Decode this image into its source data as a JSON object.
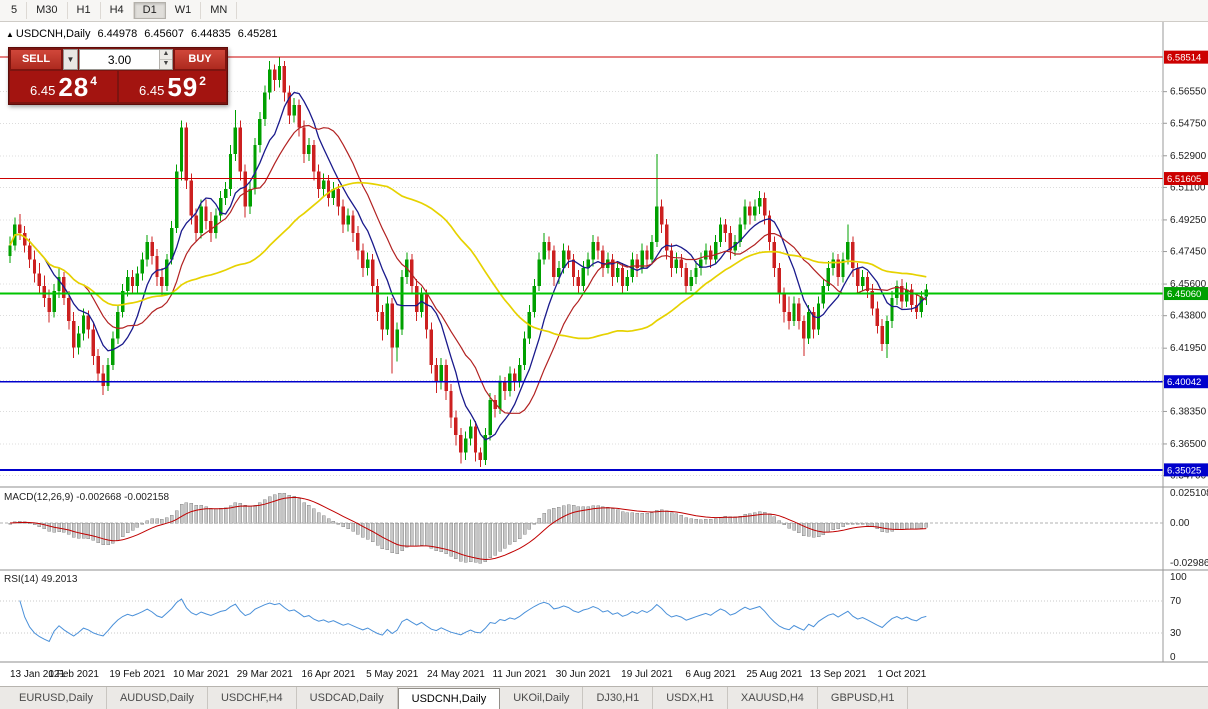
{
  "toolbar": {
    "timeframes": [
      "5",
      "M30",
      "H1",
      "H4",
      "D1",
      "W1",
      "MN"
    ],
    "active": "D1"
  },
  "chart_header": {
    "marker": "▲",
    "symbol": "USDCNH,Daily",
    "ohlc": [
      "6.44978",
      "6.45607",
      "6.44835",
      "6.45281"
    ]
  },
  "order_panel": {
    "sell_label": "SELL",
    "buy_label": "BUY",
    "volume": "3.00",
    "dropdown_icon": "▼",
    "spin_up_icon": "▲",
    "spin_down_icon": "▼",
    "sell_price": {
      "small": "6.45",
      "big": "28",
      "sup": "4"
    },
    "buy_price": {
      "small": "6.45",
      "big": "59",
      "sup": "2"
    }
  },
  "chart_data": {
    "type": "candlestick",
    "title": "USDCNH,Daily",
    "ylim": [
      6.3405,
      6.604
    ],
    "yticks": [
      6.5655,
      6.5475,
      6.529,
      6.511,
      6.4925,
      6.4745,
      6.456,
      6.438,
      6.4195,
      6.401,
      6.3835,
      6.365,
      6.347
    ],
    "up_color": "#00a000",
    "down_color": "#cc2020",
    "overlays": [
      {
        "name": "ma-fast-navy",
        "period": 8,
        "color": "#1a1a8c",
        "width": 1.3
      },
      {
        "name": "ma-mid-red",
        "period": 16,
        "color": "#b22222",
        "width": 1.2
      },
      {
        "name": "ma-slow-yellow",
        "period": 45,
        "color": "#e6d200",
        "width": 1.7
      }
    ],
    "hlines": [
      {
        "value": 6.58514,
        "color": "#cc0000",
        "width": 1,
        "label": "6.58514",
        "badge": "#cc0000"
      },
      {
        "value": 6.51605,
        "color": "#cc0000",
        "width": 1,
        "label": "6.51605",
        "badge": "#cc0000"
      },
      {
        "value": 6.4506,
        "color": "#00c400",
        "width": 2,
        "label": "6.45060",
        "badge": "#00a000"
      },
      {
        "value": 6.40042,
        "color": "#0000cc",
        "width": 1.5,
        "label": "6.40042",
        "badge": "#0000cc"
      },
      {
        "value": 6.35025,
        "color": "#0000cc",
        "width": 2,
        "label": "6.35025",
        "badge": "#0000cc"
      }
    ],
    "x_labels": [
      {
        "i": 0,
        "t": "13 Jan 2021"
      },
      {
        "i": 13,
        "t": "1 Feb 2021"
      },
      {
        "i": 26,
        "t": "19 Feb 2021"
      },
      {
        "i": 39,
        "t": "10 Mar 2021"
      },
      {
        "i": 52,
        "t": "29 Mar 2021"
      },
      {
        "i": 65,
        "t": "16 Apr 2021"
      },
      {
        "i": 78,
        "t": "5 May 2021"
      },
      {
        "i": 91,
        "t": "24 May 2021"
      },
      {
        "i": 104,
        "t": "11 Jun 2021"
      },
      {
        "i": 117,
        "t": "30 Jun 2021"
      },
      {
        "i": 130,
        "t": "19 Jul 2021"
      },
      {
        "i": 143,
        "t": "6 Aug 2021"
      },
      {
        "i": 156,
        "t": "25 Aug 2021"
      },
      {
        "i": 169,
        "t": "13 Sep 2021"
      },
      {
        "i": 182,
        "t": "1 Oct 2021"
      }
    ],
    "candles": [
      [
        6.472,
        6.483,
        6.468,
        6.478
      ],
      [
        6.478,
        6.494,
        6.475,
        6.49
      ],
      [
        6.49,
        6.496,
        6.481,
        6.485
      ],
      [
        6.485,
        6.489,
        6.474,
        6.478
      ],
      [
        6.478,
        6.482,
        6.465,
        6.47
      ],
      [
        6.47,
        6.475,
        6.457,
        6.462
      ],
      [
        6.462,
        6.468,
        6.45,
        6.455
      ],
      [
        6.455,
        6.461,
        6.443,
        6.448
      ],
      [
        6.448,
        6.453,
        6.434,
        6.44
      ],
      [
        6.44,
        6.456,
        6.437,
        6.452
      ],
      [
        6.452,
        6.465,
        6.448,
        6.46
      ],
      [
        6.46,
        6.463,
        6.444,
        6.448
      ],
      [
        6.448,
        6.452,
        6.43,
        6.435
      ],
      [
        6.435,
        6.44,
        6.414,
        6.42
      ],
      [
        6.42,
        6.432,
        6.416,
        6.428
      ],
      [
        6.428,
        6.442,
        6.424,
        6.438
      ],
      [
        6.438,
        6.441,
        6.425,
        6.43
      ],
      [
        6.43,
        6.434,
        6.41,
        6.415
      ],
      [
        6.415,
        6.419,
        6.4,
        6.405
      ],
      [
        6.405,
        6.41,
        6.393,
        6.398
      ],
      [
        6.398,
        6.414,
        6.395,
        6.41
      ],
      [
        6.41,
        6.429,
        6.407,
        6.425
      ],
      [
        6.425,
        6.444,
        6.422,
        6.44
      ],
      [
        6.44,
        6.456,
        6.437,
        6.452
      ],
      [
        6.452,
        6.464,
        6.449,
        6.46
      ],
      [
        6.46,
        6.464,
        6.45,
        6.455
      ],
      [
        6.455,
        6.466,
        6.451,
        6.462
      ],
      [
        6.462,
        6.474,
        6.458,
        6.47
      ],
      [
        6.47,
        6.484,
        6.466,
        6.48
      ],
      [
        6.48,
        6.483,
        6.467,
        6.472
      ],
      [
        6.472,
        6.476,
        6.455,
        6.46
      ],
      [
        6.46,
        6.465,
        6.449,
        6.455
      ],
      [
        6.455,
        6.473,
        6.452,
        6.47
      ],
      [
        6.47,
        6.492,
        6.467,
        6.488
      ],
      [
        6.488,
        6.524,
        6.485,
        6.52
      ],
      [
        6.52,
        6.549,
        6.515,
        6.545
      ],
      [
        6.545,
        6.548,
        6.51,
        6.515
      ],
      [
        6.515,
        6.519,
        6.49,
        6.495
      ],
      [
        6.495,
        6.499,
        6.48,
        6.485
      ],
      [
        6.485,
        6.504,
        6.482,
        6.5
      ],
      [
        6.5,
        6.504,
        6.487,
        6.492
      ],
      [
        6.492,
        6.497,
        6.48,
        6.485
      ],
      [
        6.485,
        6.499,
        6.482,
        6.495
      ],
      [
        6.495,
        6.509,
        6.492,
        6.505
      ],
      [
        6.505,
        6.514,
        6.501,
        6.51
      ],
      [
        6.51,
        6.535,
        6.506,
        6.53
      ],
      [
        6.53,
        6.555,
        6.526,
        6.545
      ],
      [
        6.545,
        6.549,
        6.515,
        6.52
      ],
      [
        6.52,
        6.524,
        6.494,
        6.5
      ],
      [
        6.5,
        6.514,
        6.496,
        6.51
      ],
      [
        6.51,
        6.539,
        6.507,
        6.535
      ],
      [
        6.535,
        6.554,
        6.531,
        6.55
      ],
      [
        6.55,
        6.569,
        6.546,
        6.565
      ],
      [
        6.565,
        6.583,
        6.561,
        6.578
      ],
      [
        6.578,
        6.581,
        6.566,
        6.572
      ],
      [
        6.572,
        6.585,
        6.568,
        6.58
      ],
      [
        6.58,
        6.583,
        6.56,
        6.565
      ],
      [
        6.565,
        6.569,
        6.547,
        6.552
      ],
      [
        6.552,
        6.562,
        6.548,
        6.558
      ],
      [
        6.558,
        6.561,
        6.54,
        6.545
      ],
      [
        6.545,
        6.549,
        6.525,
        6.53
      ],
      [
        6.53,
        6.539,
        6.526,
        6.535
      ],
      [
        6.535,
        6.538,
        6.515,
        6.52
      ],
      [
        6.52,
        6.524,
        6.505,
        6.51
      ],
      [
        6.51,
        6.519,
        6.506,
        6.515
      ],
      [
        6.515,
        6.518,
        6.5,
        6.505
      ],
      [
        6.505,
        6.514,
        6.501,
        6.51
      ],
      [
        6.51,
        6.513,
        6.495,
        6.5
      ],
      [
        6.5,
        6.504,
        6.485,
        6.49
      ],
      [
        6.49,
        6.499,
        6.486,
        6.495
      ],
      [
        6.495,
        6.498,
        6.48,
        6.485
      ],
      [
        6.485,
        6.489,
        6.47,
        6.475
      ],
      [
        6.475,
        6.479,
        6.46,
        6.465
      ],
      [
        6.465,
        6.474,
        6.461,
        6.47
      ],
      [
        6.47,
        6.473,
        6.45,
        6.455
      ],
      [
        6.455,
        6.459,
        6.435,
        6.44
      ],
      [
        6.44,
        6.444,
        6.424,
        6.43
      ],
      [
        6.43,
        6.449,
        6.427,
        6.445
      ],
      [
        6.445,
        6.448,
        6.405,
        6.42
      ],
      [
        6.42,
        6.434,
        6.412,
        6.43
      ],
      [
        6.43,
        6.464,
        6.427,
        6.46
      ],
      [
        6.46,
        6.474,
        6.456,
        6.47
      ],
      [
        6.47,
        6.473,
        6.45,
        6.455
      ],
      [
        6.455,
        6.459,
        6.435,
        6.44
      ],
      [
        6.44,
        6.454,
        6.437,
        6.45
      ],
      [
        6.45,
        6.453,
        6.425,
        6.43
      ],
      [
        6.43,
        6.434,
        6.405,
        6.41
      ],
      [
        6.41,
        6.414,
        6.394,
        6.4
      ],
      [
        6.4,
        6.414,
        6.396,
        6.41
      ],
      [
        6.41,
        6.413,
        6.39,
        6.395
      ],
      [
        6.395,
        6.399,
        6.374,
        6.38
      ],
      [
        6.38,
        6.384,
        6.364,
        6.37
      ],
      [
        6.37,
        6.374,
        6.354,
        6.36
      ],
      [
        6.36,
        6.372,
        6.356,
        6.368
      ],
      [
        6.368,
        6.379,
        6.364,
        6.375
      ],
      [
        6.375,
        6.378,
        6.355,
        6.36
      ],
      [
        6.36,
        6.363,
        6.352,
        6.356
      ],
      [
        6.356,
        6.374,
        6.353,
        6.37
      ],
      [
        6.37,
        6.394,
        6.367,
        6.39
      ],
      [
        6.39,
        6.393,
        6.38,
        6.385
      ],
      [
        6.385,
        6.404,
        6.382,
        6.4
      ],
      [
        6.4,
        6.403,
        6.39,
        6.395
      ],
      [
        6.395,
        6.409,
        6.392,
        6.405
      ],
      [
        6.405,
        6.408,
        6.395,
        6.4
      ],
      [
        6.4,
        6.414,
        6.397,
        6.41
      ],
      [
        6.41,
        6.429,
        6.407,
        6.425
      ],
      [
        6.425,
        6.444,
        6.422,
        6.44
      ],
      [
        6.44,
        6.459,
        6.437,
        6.455
      ],
      [
        6.455,
        6.474,
        6.452,
        6.47
      ],
      [
        6.47,
        6.485,
        6.467,
        6.48
      ],
      [
        6.48,
        6.483,
        6.47,
        6.475
      ],
      [
        6.475,
        6.478,
        6.455,
        6.46
      ],
      [
        6.46,
        6.469,
        6.456,
        6.465
      ],
      [
        6.465,
        6.479,
        6.462,
        6.475
      ],
      [
        6.475,
        6.478,
        6.465,
        6.47
      ],
      [
        6.47,
        6.473,
        6.455,
        6.46
      ],
      [
        6.46,
        6.464,
        6.45,
        6.455
      ],
      [
        6.455,
        6.469,
        6.452,
        6.465
      ],
      [
        6.465,
        6.474,
        6.461,
        6.47
      ],
      [
        6.47,
        6.484,
        6.466,
        6.48
      ],
      [
        6.48,
        6.483,
        6.47,
        6.475
      ],
      [
        6.475,
        6.478,
        6.46,
        6.465
      ],
      [
        6.465,
        6.474,
        6.462,
        6.47
      ],
      [
        6.47,
        6.473,
        6.455,
        6.46
      ],
      [
        6.46,
        6.469,
        6.457,
        6.465
      ],
      [
        6.465,
        6.468,
        6.45,
        6.455
      ],
      [
        6.455,
        6.464,
        6.452,
        6.46
      ],
      [
        6.46,
        6.474,
        6.457,
        6.47
      ],
      [
        6.47,
        6.473,
        6.46,
        6.465
      ],
      [
        6.465,
        6.479,
        6.462,
        6.475
      ],
      [
        6.475,
        6.478,
        6.465,
        6.47
      ],
      [
        6.47,
        6.484,
        6.467,
        6.48
      ],
      [
        6.48,
        6.53,
        6.477,
        6.5
      ],
      [
        6.5,
        6.504,
        6.485,
        6.49
      ],
      [
        6.49,
        6.493,
        6.47,
        6.475
      ],
      [
        6.475,
        6.479,
        6.46,
        6.465
      ],
      [
        6.465,
        6.474,
        6.462,
        6.47
      ],
      [
        6.47,
        6.473,
        6.46,
        6.465
      ],
      [
        6.465,
        6.468,
        6.45,
        6.455
      ],
      [
        6.455,
        6.464,
        6.452,
        6.46
      ],
      [
        6.46,
        6.469,
        6.456,
        6.465
      ],
      [
        6.465,
        6.474,
        6.461,
        6.47
      ],
      [
        6.47,
        6.479,
        6.467,
        6.475
      ],
      [
        6.475,
        6.478,
        6.465,
        6.47
      ],
      [
        6.47,
        6.484,
        6.467,
        6.48
      ],
      [
        6.48,
        6.494,
        6.477,
        6.49
      ],
      [
        6.49,
        6.493,
        6.48,
        6.485
      ],
      [
        6.485,
        6.489,
        6.47,
        6.475
      ],
      [
        6.475,
        6.484,
        6.472,
        6.48
      ],
      [
        6.48,
        6.494,
        6.477,
        6.49
      ],
      [
        6.49,
        6.504,
        6.487,
        6.5
      ],
      [
        6.5,
        6.503,
        6.49,
        6.495
      ],
      [
        6.495,
        6.504,
        6.492,
        6.5
      ],
      [
        6.5,
        6.509,
        6.496,
        6.505
      ],
      [
        6.505,
        6.508,
        6.49,
        6.495
      ],
      [
        6.495,
        6.498,
        6.475,
        6.48
      ],
      [
        6.48,
        6.483,
        6.46,
        6.465
      ],
      [
        6.465,
        6.468,
        6.445,
        6.45
      ],
      [
        6.45,
        6.454,
        6.434,
        6.44
      ],
      [
        6.44,
        6.449,
        6.43,
        6.435
      ],
      [
        6.435,
        6.449,
        6.432,
        6.445
      ],
      [
        6.445,
        6.448,
        6.43,
        6.435
      ],
      [
        6.435,
        6.438,
        6.415,
        6.425
      ],
      [
        6.425,
        6.444,
        6.422,
        6.44
      ],
      [
        6.44,
        6.443,
        6.425,
        6.43
      ],
      [
        6.43,
        6.449,
        6.427,
        6.445
      ],
      [
        6.445,
        6.459,
        6.442,
        6.455
      ],
      [
        6.455,
        6.469,
        6.452,
        6.465
      ],
      [
        6.465,
        6.474,
        6.461,
        6.47
      ],
      [
        6.47,
        6.473,
        6.455,
        6.46
      ],
      [
        6.46,
        6.474,
        6.457,
        6.47
      ],
      [
        6.47,
        6.49,
        6.467,
        6.48
      ],
      [
        6.48,
        6.483,
        6.46,
        6.465
      ],
      [
        6.465,
        6.468,
        6.45,
        6.455
      ],
      [
        6.455,
        6.464,
        6.452,
        6.46
      ],
      [
        6.46,
        6.463,
        6.448,
        6.452
      ],
      [
        6.452,
        6.456,
        6.438,
        6.442
      ],
      [
        6.442,
        6.446,
        6.428,
        6.432
      ],
      [
        6.432,
        6.436,
        6.418,
        6.422
      ],
      [
        6.422,
        6.438,
        6.414,
        6.435
      ],
      [
        6.435,
        6.452,
        6.431,
        6.448
      ],
      [
        6.448,
        6.458,
        6.444,
        6.455
      ],
      [
        6.455,
        6.459,
        6.442,
        6.446
      ],
      [
        6.446,
        6.457,
        6.443,
        6.453
      ],
      [
        6.453,
        6.456,
        6.44,
        6.444
      ],
      [
        6.444,
        6.45,
        6.436,
        6.44
      ],
      [
        6.44,
        6.452,
        6.437,
        6.449
      ],
      [
        6.449,
        6.456,
        6.444,
        6.453
      ]
    ]
  },
  "macd_panel": {
    "label": "MACD(12,26,9) -0.002668 -0.002158",
    "fast": 12,
    "slow": 26,
    "signal": 9,
    "axis_labels": [
      "0.025108",
      "0.00",
      "-0.029868"
    ],
    "hist_color": "#c8c8c8",
    "hist_stroke": "#8a8a8a",
    "signal_color": "#c00000"
  },
  "rsi_panel": {
    "label": "RSI(14) 49.2013",
    "period": 14,
    "axis_labels": [
      "100",
      "70",
      "30",
      "0"
    ],
    "levels": [
      70,
      30
    ],
    "color": "#4a90d9"
  },
  "tabs": {
    "items": [
      "EURUSD,Daily",
      "AUDUSD,Daily",
      "USDCHF,H4",
      "USDCAD,Daily",
      "USDCNH,Daily",
      "UKOil,Daily",
      "DJ30,H1",
      "USDX,H1",
      "XAUUSD,H4",
      "GBPUSD,H1"
    ],
    "active": "USDCNH,Daily"
  }
}
